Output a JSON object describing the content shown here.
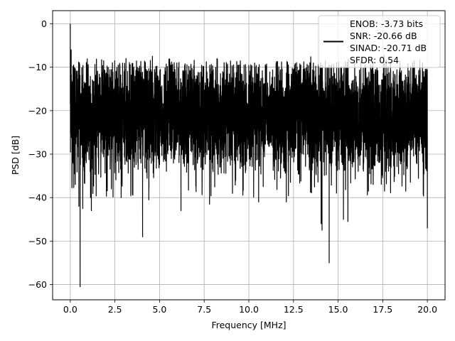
{
  "chart_data": {
    "type": "line",
    "title": "",
    "xlabel": "Frequency [MHz]",
    "ylabel": "PSD [dB]",
    "xlim": [
      -0.99,
      20.99
    ],
    "ylim": [
      -63.5,
      3
    ],
    "xticks": [
      0.0,
      2.5,
      5.0,
      7.5,
      10.0,
      12.5,
      15.0,
      17.5,
      20.0
    ],
    "xtick_labels": [
      "0.0",
      "2.5",
      "5.0",
      "7.5",
      "10.0",
      "12.5",
      "15.0",
      "17.5",
      "20.0"
    ],
    "yticks": [
      0,
      -10,
      -20,
      -30,
      -40,
      -50,
      -60
    ],
    "ytick_labels": [
      "0",
      "−10",
      "−20",
      "−30",
      "−40",
      "−50",
      "−60"
    ],
    "grid": true,
    "legend": {
      "placement": "top-right",
      "entries": [
        "ENOB: -3.73 bits",
        "SNR: -20.66 dB",
        "SINAD: -20.71 dB",
        "SFDR: 0.54"
      ]
    },
    "series": [
      {
        "color": "#000000",
        "noise_floor": {
          "x_range": [
            0,
            20
          ],
          "y_typical_range": [
            -31,
            -11
          ],
          "y_min": -40,
          "y_max": -8.5
        },
        "spikes": [
          {
            "x": 0.0,
            "y": 0
          },
          {
            "x": 0.05,
            "y": -6
          },
          {
            "x": 0.15,
            "y": -10
          },
          {
            "x": 0.28,
            "y": -37
          },
          {
            "x": 0.48,
            "y": -42
          },
          {
            "x": 0.55,
            "y": -60.5
          },
          {
            "x": 0.7,
            "y": -42.5
          },
          {
            "x": 1.18,
            "y": -43
          },
          {
            "x": 2.3,
            "y": -38
          },
          {
            "x": 2.85,
            "y": -40
          },
          {
            "x": 4.05,
            "y": -49
          },
          {
            "x": 4.4,
            "y": -40.5
          },
          {
            "x": 4.6,
            "y": -7.5
          },
          {
            "x": 6.2,
            "y": -43
          },
          {
            "x": 7.8,
            "y": -41.5
          },
          {
            "x": 10.55,
            "y": -41
          },
          {
            "x": 12.1,
            "y": -41
          },
          {
            "x": 14.05,
            "y": -46
          },
          {
            "x": 14.1,
            "y": -47.5
          },
          {
            "x": 14.5,
            "y": -55
          },
          {
            "x": 15.3,
            "y": -45
          },
          {
            "x": 15.55,
            "y": -45.5
          },
          {
            "x": 16.7,
            "y": -38.5
          },
          {
            "x": 17.6,
            "y": -38.5
          },
          {
            "x": 20.0,
            "y": -47
          }
        ]
      }
    ]
  }
}
